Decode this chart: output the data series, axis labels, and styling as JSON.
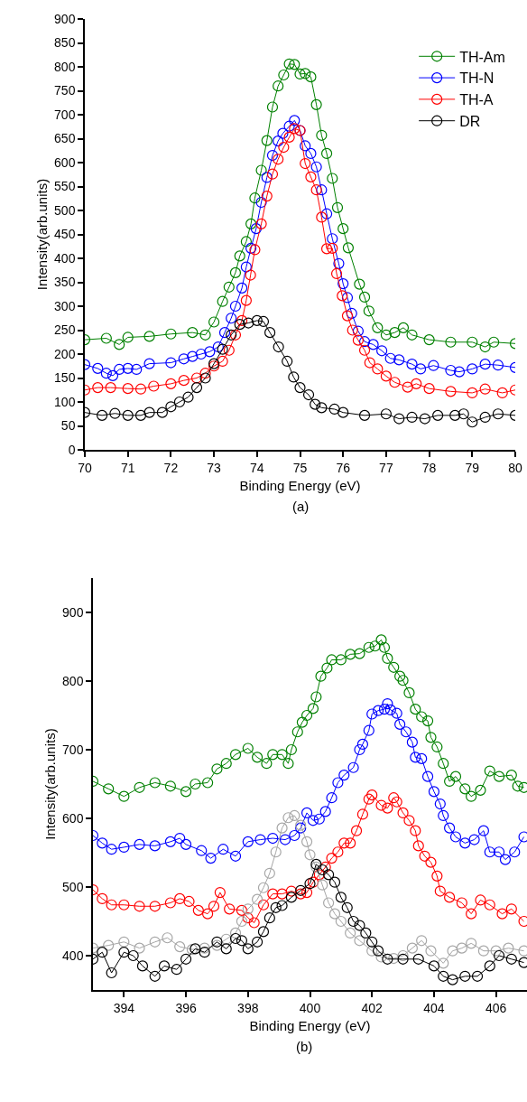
{
  "chart_data": [
    {
      "type": "line",
      "xlabel": "Binding Energy (eV)",
      "ylabel": "Intensity(arb.units)",
      "annotations": [
        "(a)"
      ],
      "marker": "circle",
      "line_style": "solid",
      "legend": "top right",
      "xlim": [
        70,
        80
      ],
      "ylim": [
        0,
        900
      ],
      "xticks": [
        70,
        71,
        72,
        73,
        74,
        75,
        76,
        77,
        78,
        79,
        80
      ],
      "yticks": [
        0,
        50,
        100,
        150,
        200,
        250,
        300,
        350,
        400,
        450,
        500,
        550,
        600,
        650,
        700,
        750,
        800,
        850,
        900
      ],
      "series": [
        {
          "name": "TH-Am",
          "color": "#008000",
          "x": [
            70,
            70.5,
            70.8,
            71,
            71.5,
            72,
            72.5,
            72.8,
            73.0,
            73.2,
            73.35,
            73.5,
            73.6,
            73.75,
            73.86,
            73.95,
            74.1,
            74.23,
            74.36,
            74.49,
            74.62,
            74.75,
            74.87,
            75.0,
            75.12,
            75.25,
            75.38,
            75.5,
            75.62,
            75.75,
            75.87,
            76.0,
            76.12,
            76.38,
            76.5,
            76.6,
            76.8,
            77.0,
            77.2,
            77.4,
            77.6,
            78.0,
            78.5,
            79.0,
            79.3,
            79.5,
            80.0
          ],
          "values": [
            230,
            233,
            220,
            235,
            237,
            242,
            245,
            240,
            267,
            310,
            340,
            370,
            405,
            435,
            472,
            526,
            584,
            646,
            716,
            760,
            783,
            806,
            805,
            785,
            786,
            779,
            721,
            657,
            619,
            567,
            506,
            462,
            422,
            346,
            319,
            290,
            255,
            240,
            245,
            255,
            240,
            230,
            225,
            225,
            215,
            225,
            222
          ]
        },
        {
          "name": "TH-N",
          "color": "#0000ff",
          "x": [
            70,
            70.3,
            70.5,
            70.65,
            70.8,
            71,
            71.2,
            71.5,
            72,
            72.3,
            72.5,
            72.7,
            72.9,
            73.1,
            73.25,
            73.4,
            73.5,
            73.65,
            73.75,
            73.86,
            73.98,
            74.1,
            74.23,
            74.36,
            74.49,
            74.6,
            74.75,
            74.87,
            75.0,
            75.12,
            75.25,
            75.38,
            75.5,
            75.62,
            75.75,
            75.9,
            76.0,
            76.1,
            76.2,
            76.35,
            76.5,
            76.7,
            76.9,
            77.1,
            77.3,
            77.6,
            77.8,
            78.1,
            78.5,
            78.7,
            79.0,
            79.3,
            79.6,
            80.0
          ],
          "values": [
            178,
            170,
            160,
            155,
            168,
            170,
            168,
            180,
            182,
            190,
            195,
            200,
            205,
            215,
            245,
            275,
            300,
            338,
            382,
            421,
            462,
            517,
            569,
            615,
            645,
            661,
            676,
            688,
            667,
            635,
            619,
            591,
            543,
            493,
            441,
            389,
            347,
            318,
            285,
            248,
            226,
            220,
            207,
            191,
            188,
            179,
            169,
            176,
            166,
            163,
            169,
            179,
            177,
            172
          ]
        },
        {
          "name": "TH-A",
          "color": "#ff0000",
          "x": [
            70,
            70.3,
            70.6,
            71,
            71.3,
            71.6,
            72,
            72.3,
            72.6,
            72.8,
            73.0,
            73.2,
            73.35,
            73.5,
            73.65,
            73.75,
            73.85,
            73.95,
            74.1,
            74.23,
            74.36,
            74.49,
            74.62,
            74.75,
            74.87,
            75.0,
            75.12,
            75.25,
            75.38,
            75.5,
            75.62,
            75.75,
            75.85,
            75.98,
            76.1,
            76.22,
            76.35,
            76.5,
            76.62,
            76.8,
            77.0,
            77.2,
            77.5,
            77.7,
            78.0,
            78.5,
            79.0,
            79.3,
            79.7,
            80.0
          ],
          "values": [
            125,
            130,
            130,
            128,
            127,
            133,
            138,
            145,
            150,
            160,
            175,
            185,
            208,
            240,
            270,
            312,
            365,
            418,
            472,
            530,
            576,
            607,
            632,
            653,
            671,
            667,
            598,
            570,
            543,
            486,
            420,
            421,
            368,
            322,
            280,
            250,
            229,
            208,
            182,
            169,
            154,
            141,
            131,
            138,
            128,
            122,
            119,
            127,
            119,
            125
          ]
        },
        {
          "name": "DR",
          "color": "#000000",
          "x": [
            70,
            70.4,
            70.7,
            71,
            71.3,
            71.5,
            71.8,
            72,
            72.2,
            72.4,
            72.6,
            72.8,
            73.0,
            73.2,
            73.4,
            73.6,
            73.8,
            74.0,
            74.15,
            74.3,
            74.5,
            74.7,
            74.85,
            75.0,
            75.2,
            75.35,
            75.5,
            75.8,
            76.0,
            76.5,
            77.0,
            77.3,
            77.6,
            77.9,
            78.2,
            78.6,
            78.8,
            79.0,
            79.3,
            79.6,
            80.0
          ],
          "values": [
            78,
            72,
            76,
            72,
            72,
            78,
            78,
            90,
            100,
            110,
            130,
            150,
            180,
            210,
            240,
            262,
            265,
            270,
            268,
            245,
            215,
            185,
            152,
            130,
            115,
            95,
            88,
            85,
            78,
            72,
            75,
            65,
            68,
            65,
            72,
            72,
            75,
            58,
            68,
            75,
            72
          ]
        }
      ]
    },
    {
      "type": "line",
      "xlabel": "Binding Energy (eV)",
      "ylabel": "Intensity(arb.units)",
      "annotations": [
        "(b)"
      ],
      "marker": "circle",
      "line_style": "solid",
      "xlim": [
        393,
        407
      ],
      "ylim": [
        350,
        950
      ],
      "xticks": [
        394,
        396,
        398,
        400,
        402,
        404,
        406
      ],
      "yticks": [
        400,
        500,
        600,
        700,
        800,
        900
      ],
      "series": [
        {
          "color": "#008000",
          "x": [
            393,
            393.5,
            394,
            394.5,
            395,
            395.5,
            396,
            396.3,
            396.7,
            397,
            397.3,
            397.6,
            398,
            398.3,
            398.6,
            398.8,
            399.1,
            399.3,
            399.4,
            399.6,
            399.75,
            399.9,
            400.1,
            400.2,
            400.35,
            400.55,
            400.7,
            401.0,
            401.3,
            401.6,
            401.9,
            402.1,
            402.3,
            402.4,
            402.5,
            402.7,
            402.9,
            403.0,
            403.2,
            403.4,
            403.6,
            403.8,
            403.9,
            404.1,
            404.3,
            404.5,
            404.7,
            405.0,
            405.2,
            405.5,
            405.8,
            406.1,
            406.5,
            406.7,
            406.9
          ],
          "values": [
            654,
            643,
            632,
            645,
            652,
            647,
            639,
            650,
            652,
            672,
            680,
            693,
            702,
            689,
            680,
            693,
            693,
            680,
            700,
            726,
            740,
            750,
            760,
            777,
            807,
            819,
            831,
            831,
            839,
            840,
            849,
            851,
            860,
            849,
            833,
            820,
            807,
            801,
            783,
            759,
            748,
            742,
            718,
            704,
            680,
            654,
            661,
            643,
            632,
            641,
            669,
            661,
            663,
            647,
            645
          ]
        },
        {
          "color": "#0000ff",
          "x": [
            393,
            393.3,
            393.6,
            394,
            394.5,
            395,
            395.5,
            395.8,
            396,
            396.5,
            396.8,
            397.2,
            397.6,
            398,
            398.4,
            398.8,
            399.2,
            399.5,
            399.7,
            399.9,
            400.1,
            400.3,
            400.5,
            400.7,
            400.9,
            401.1,
            401.4,
            401.6,
            401.7,
            401.9,
            402.0,
            402.2,
            402.4,
            402.5,
            402.6,
            402.8,
            402.9,
            403.1,
            403.3,
            403.4,
            403.6,
            403.8,
            404.0,
            404.2,
            404.3,
            404.5,
            404.7,
            405.0,
            405.3,
            405.6,
            405.8,
            406.1,
            406.3,
            406.6,
            406.9
          ],
          "values": [
            575,
            564,
            555,
            558,
            562,
            560,
            566,
            571,
            562,
            553,
            542,
            555,
            545,
            566,
            569,
            571,
            569,
            575,
            586,
            608,
            597,
            599,
            610,
            630,
            652,
            663,
            674,
            700,
            708,
            728,
            752,
            757,
            759,
            767,
            758,
            753,
            737,
            726,
            711,
            689,
            687,
            661,
            639,
            621,
            604,
            586,
            573,
            564,
            569,
            582,
            551,
            551,
            540,
            551,
            573
          ]
        },
        {
          "color": "#ff0000",
          "x": [
            393,
            393.3,
            393.6,
            394,
            394.5,
            395,
            395.5,
            395.8,
            396.1,
            396.4,
            396.7,
            396.9,
            397.1,
            397.4,
            397.8,
            398.0,
            398.2,
            398.5,
            398.8,
            399.1,
            399.4,
            399.7,
            399.9,
            400.1,
            400.3,
            400.5,
            400.7,
            400.9,
            401.1,
            401.3,
            401.5,
            401.7,
            401.9,
            402.0,
            402.3,
            402.5,
            402.7,
            402.8,
            403.0,
            403.2,
            403.4,
            403.5,
            403.7,
            403.9,
            404.1,
            404.2,
            404.5,
            404.9,
            405.2,
            405.5,
            405.8,
            406.2,
            406.5,
            406.9
          ],
          "values": [
            496,
            483,
            474,
            474,
            472,
            472,
            477,
            483,
            479,
            466,
            461,
            472,
            492,
            468,
            466,
            455,
            448,
            474,
            490,
            490,
            494,
            490,
            492,
            507,
            518,
            529,
            542,
            551,
            564,
            564,
            582,
            606,
            628,
            634,
            619,
            615,
            630,
            624,
            608,
            597,
            582,
            560,
            545,
            536,
            516,
            494,
            485,
            477,
            461,
            481,
            474,
            461,
            468,
            450
          ]
        },
        {
          "color": "#a6a6a6",
          "x": [
            393,
            393.5,
            394,
            394.5,
            395,
            395.4,
            395.8,
            396.2,
            396.6,
            397.0,
            397.3,
            397.6,
            397.8,
            398.0,
            398.3,
            398.5,
            398.7,
            398.9,
            399.1,
            399.3,
            399.5,
            399.7,
            399.9,
            400.0,
            400.2,
            400.4,
            400.6,
            400.8,
            401.0,
            401.3,
            401.6,
            402.0,
            402.3,
            402.7,
            403.0,
            403.3,
            403.6,
            403.9,
            404.3,
            404.6,
            404.9,
            405.2,
            405.6,
            406.0,
            406.4,
            406.9
          ],
          "values": [
            411,
            415,
            420,
            411,
            420,
            426,
            413,
            409,
            411,
            415,
            424,
            433,
            450,
            468,
            482,
            499,
            520,
            551,
            586,
            601,
            604,
            590,
            566,
            547,
            529,
            503,
            477,
            461,
            450,
            433,
            422,
            407,
            398,
            396,
            400,
            411,
            422,
            407,
            389,
            407,
            411,
            418,
            407,
            407,
            411,
            407
          ]
        },
        {
          "color": "#000000",
          "x": [
            393,
            393.3,
            393.6,
            394,
            394.3,
            394.6,
            395,
            395.3,
            395.7,
            396,
            396.3,
            396.6,
            397,
            397.3,
            397.6,
            397.8,
            398,
            398.3,
            398.5,
            398.7,
            398.9,
            399.1,
            399.4,
            399.7,
            400.0,
            400.2,
            400.4,
            400.6,
            400.8,
            401.0,
            401.2,
            401.4,
            401.6,
            401.8,
            402.0,
            402.2,
            402.5,
            403,
            403.5,
            404,
            404.3,
            404.6,
            405,
            405.4,
            405.8,
            406.1,
            406.5,
            406.9
          ],
          "values": [
            395,
            405,
            375,
            405,
            400,
            385,
            370,
            385,
            380,
            395,
            410,
            405,
            420,
            410,
            425,
            422,
            410,
            420,
            435,
            455,
            470,
            473,
            485,
            495,
            505,
            533,
            525,
            518,
            507,
            485,
            470,
            450,
            444,
            433,
            420,
            407,
            395,
            395,
            395,
            385,
            370,
            365,
            370,
            370,
            385,
            400,
            395,
            390
          ]
        }
      ]
    }
  ]
}
